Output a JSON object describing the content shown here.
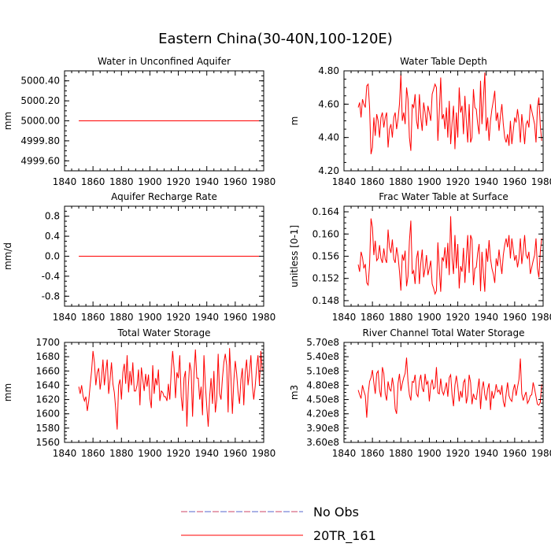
{
  "figure_title": "Eastern China(30-40N,100-120E)",
  "legend": {
    "entries": [
      {
        "label": "No Obs",
        "color": "#cc4466",
        "color2": "#5566cc",
        "style": "dashed"
      },
      {
        "label": "20TR_161",
        "color": "#ff0000",
        "style": "solid"
      }
    ]
  },
  "chart_data": [
    {
      "type": "line",
      "title": "Water in Unconfined Aquifer",
      "xlabel": "",
      "ylabel": "mm",
      "xlim": [
        1840,
        1980
      ],
      "ylim": [
        4999.5,
        5000.5
      ],
      "x_ticks": [
        1840,
        1860,
        1880,
        1900,
        1920,
        1940,
        1960,
        1980
      ],
      "x_tick_labels": [
        "1840",
        "1860",
        "1880",
        "1900",
        "1920",
        "1940",
        "1960",
        "1980"
      ],
      "y_ticks": [
        4999.6,
        4999.8,
        5000.0,
        5000.2,
        5000.4
      ],
      "y_tick_labels": [
        "4999.60",
        "4999.80",
        "5000.00",
        "5000.20",
        "5000.40"
      ],
      "series": [
        {
          "name": "20TR_161",
          "color": "#ff0000",
          "x_start": 1850,
          "x_step": 1,
          "values": [
            5000.0,
            5000.0
          ]
        }
      ],
      "series_constant_x_end": 1979
    },
    {
      "type": "line",
      "title": "Water Table Depth",
      "xlabel": "",
      "ylabel": "m",
      "xlim": [
        1840,
        1980
      ],
      "ylim": [
        4.2,
        4.8
      ],
      "x_ticks": [
        1840,
        1860,
        1880,
        1900,
        1920,
        1940,
        1960,
        1980
      ],
      "x_tick_labels": [
        "1840",
        "1860",
        "1880",
        "1900",
        "1920",
        "1940",
        "1960",
        "1980"
      ],
      "y_ticks": [
        4.2,
        4.4,
        4.6,
        4.8
      ],
      "y_tick_labels": [
        "4.20",
        "4.40",
        "4.60",
        "4.80"
      ],
      "series": [
        {
          "name": "20TR_161",
          "color": "#ff0000",
          "x_start": 1850,
          "x_step": 1,
          "values": [
            4.58,
            4.61,
            4.52,
            4.63,
            4.6,
            4.58,
            4.71,
            4.72,
            4.58,
            4.3,
            4.34,
            4.52,
            4.41,
            4.54,
            4.5,
            4.4,
            4.52,
            4.55,
            4.46,
            4.52,
            4.55,
            4.34,
            4.45,
            4.48,
            4.4,
            4.52,
            4.55,
            4.45,
            4.51,
            4.6,
            4.78,
            4.5,
            4.55,
            4.48,
            4.7,
            4.63,
            4.4,
            4.32,
            4.6,
            4.58,
            4.66,
            4.5,
            4.45,
            4.66,
            4.52,
            4.44,
            4.61,
            4.55,
            4.47,
            4.59,
            4.55,
            4.5,
            4.66,
            4.69,
            4.72,
            4.7,
            4.38,
            4.55,
            4.76,
            4.51,
            4.54,
            4.45,
            4.58,
            4.4,
            4.62,
            4.36,
            4.49,
            4.59,
            4.33,
            4.55,
            4.4,
            4.7,
            4.55,
            4.59,
            4.42,
            4.65,
            4.5,
            4.37,
            4.6,
            4.37,
            4.4,
            4.69,
            4.58,
            4.57,
            4.48,
            4.42,
            4.74,
            4.48,
            4.63,
            4.79,
            4.44,
            4.52,
            4.38,
            4.5,
            4.57,
            4.62,
            4.68,
            4.5,
            4.55,
            4.44,
            4.53,
            4.6,
            4.48,
            4.4,
            4.37,
            4.42,
            4.35,
            4.5,
            4.36,
            4.44,
            4.52,
            4.49,
            4.57,
            4.5,
            4.37,
            4.54,
            4.46,
            4.36,
            4.48,
            4.5,
            4.46,
            4.6,
            4.56,
            4.52,
            4.48,
            4.37,
            4.58,
            4.64,
            4.47,
            4.38
          ]
        }
      ]
    },
    {
      "type": "line",
      "title": "Aquifer Recharge Rate",
      "xlabel": "",
      "ylabel": "mm/d",
      "xlim": [
        1840,
        1980
      ],
      "ylim": [
        -1.0,
        1.0
      ],
      "x_ticks": [
        1840,
        1860,
        1880,
        1900,
        1920,
        1940,
        1960,
        1980
      ],
      "x_tick_labels": [
        "1840",
        "1860",
        "1880",
        "1900",
        "1920",
        "1940",
        "1960",
        "1980"
      ],
      "y_ticks": [
        -0.8,
        -0.4,
        0.0,
        0.4,
        0.8
      ],
      "y_tick_labels": [
        "-0.8",
        "-0.4",
        "0.0",
        "0.4",
        "0.8"
      ],
      "series": [
        {
          "name": "20TR_161",
          "color": "#ff0000",
          "x_start": 1850,
          "x_step": 1,
          "values": [
            0.0,
            0.0
          ]
        }
      ],
      "series_constant_x_end": 1979
    },
    {
      "type": "line",
      "title": "Frac Water Table at Surface",
      "xlabel": "",
      "ylabel": "unitless [0-1]",
      "xlim": [
        1840,
        1980
      ],
      "ylim": [
        0.147,
        0.165
      ],
      "x_ticks": [
        1840,
        1860,
        1880,
        1900,
        1920,
        1940,
        1960,
        1980
      ],
      "x_tick_labels": [
        "1840",
        "1860",
        "1880",
        "1900",
        "1920",
        "1940",
        "1960",
        "1980"
      ],
      "y_ticks": [
        0.148,
        0.152,
        0.156,
        0.16,
        0.164
      ],
      "y_tick_labels": [
        "0.148",
        "0.152",
        "0.156",
        "0.160",
        "0.164"
      ],
      "series": [
        {
          "name": "20TR_161",
          "color": "#ff0000",
          "x_start": 1850,
          "x_step": 1,
          "values": [
            0.1545,
            0.1532,
            0.1568,
            0.1558,
            0.1538,
            0.1546,
            0.1512,
            0.1508,
            0.1545,
            0.1628,
            0.1612,
            0.1562,
            0.1588,
            0.1552,
            0.1556,
            0.158,
            0.1556,
            0.1548,
            0.1574,
            0.1555,
            0.1548,
            0.1608,
            0.1576,
            0.1566,
            0.159,
            0.1555,
            0.1548,
            0.1576,
            0.156,
            0.1533,
            0.1498,
            0.1563,
            0.1552,
            0.157,
            0.1506,
            0.1524,
            0.1587,
            0.1624,
            0.1528,
            0.1534,
            0.151,
            0.1556,
            0.157,
            0.151,
            0.1548,
            0.1572,
            0.1522,
            0.1538,
            0.1562,
            0.1526,
            0.1538,
            0.1552,
            0.151,
            0.1502,
            0.1492,
            0.1498,
            0.1585,
            0.1538,
            0.1496,
            0.1558,
            0.1552,
            0.1576,
            0.1538,
            0.1584,
            0.1526,
            0.1632,
            0.1556,
            0.1528,
            0.1598,
            0.1538,
            0.1582,
            0.1502,
            0.1542,
            0.1532,
            0.1575,
            0.1512,
            0.1556,
            0.1598,
            0.153,
            0.1598,
            0.159,
            0.1508,
            0.1538,
            0.154,
            0.1566,
            0.1582,
            0.1497,
            0.1568,
            0.153,
            0.1496,
            0.1574,
            0.155,
            0.1589,
            0.1556,
            0.1538,
            0.1528,
            0.1512,
            0.1556,
            0.1542,
            0.1572,
            0.1548,
            0.1528,
            0.1562,
            0.158,
            0.1592,
            0.1576,
            0.1598,
            0.1556,
            0.1592,
            0.1572,
            0.1552,
            0.1562,
            0.154,
            0.1556,
            0.1592,
            0.1546,
            0.1568,
            0.1598,
            0.1562,
            0.1556,
            0.1568,
            0.1528,
            0.154,
            0.1552,
            0.1562,
            0.1592,
            0.1538,
            0.1522,
            0.1568,
            0.1592
          ]
        }
      ]
    },
    {
      "type": "line",
      "title": "Total Water Storage",
      "xlabel": "",
      "ylabel": "mm",
      "xlim": [
        1840,
        1980
      ],
      "ylim": [
        1560,
        1700
      ],
      "x_ticks": [
        1840,
        1860,
        1880,
        1900,
        1920,
        1940,
        1960,
        1980
      ],
      "x_tick_labels": [
        "1840",
        "1860",
        "1880",
        "1900",
        "1920",
        "1940",
        "1960",
        "1980"
      ],
      "y_ticks": [
        1560,
        1580,
        1600,
        1620,
        1640,
        1660,
        1680,
        1700
      ],
      "y_tick_labels": [
        "1560",
        "1580",
        "1600",
        "1620",
        "1640",
        "1660",
        "1680",
        "1700"
      ],
      "series": [
        {
          "name": "20TR_161",
          "color": "#ff0000",
          "x_start": 1850,
          "x_step": 1,
          "values": [
            1638,
            1628,
            1640,
            1625,
            1618,
            1624,
            1604,
            1618,
            1640,
            1660,
            1688,
            1672,
            1640,
            1658,
            1664,
            1634,
            1650,
            1676,
            1640,
            1660,
            1676,
            1628,
            1648,
            1672,
            1642,
            1630,
            1606,
            1578,
            1640,
            1648,
            1620,
            1658,
            1670,
            1642,
            1682,
            1630,
            1660,
            1640,
            1672,
            1632,
            1632,
            1640,
            1662,
            1612,
            1665,
            1648,
            1632,
            1656,
            1638,
            1655,
            1622,
            1608,
            1668,
            1628,
            1650,
            1640,
            1662,
            1618,
            1632,
            1630,
            1624,
            1624,
            1618,
            1642,
            1620,
            1660,
            1688,
            1664,
            1622,
            1658,
            1650,
            1682,
            1624,
            1604,
            1650,
            1660,
            1582,
            1638,
            1672,
            1660,
            1596,
            1656,
            1690,
            1650,
            1650,
            1620,
            1638,
            1598,
            1682,
            1640,
            1610,
            1582,
            1624,
            1650,
            1614,
            1660,
            1602,
            1620,
            1684,
            1628,
            1620,
            1650,
            1672,
            1684,
            1668,
            1602,
            1692,
            1650,
            1600,
            1646,
            1674,
            1656,
            1630,
            1614,
            1648,
            1664,
            1612,
            1658,
            1676,
            1640,
            1658,
            1682,
            1640,
            1620,
            1638,
            1664,
            1682,
            1640,
            1688,
            1660
          ]
        }
      ]
    },
    {
      "type": "line",
      "title": "River Channel Total Water Storage",
      "xlabel": "",
      "ylabel": "m3",
      "xlim": [
        1840,
        1980
      ],
      "ylim": [
        360000000.0,
        570000000.0
      ],
      "x_ticks": [
        1840,
        1860,
        1880,
        1900,
        1920,
        1940,
        1960,
        1980
      ],
      "x_tick_labels": [
        "1840",
        "1860",
        "1880",
        "1900",
        "1920",
        "1940",
        "1960",
        "1980"
      ],
      "y_ticks": [
        360000000.0,
        390000000.0,
        420000000.0,
        450000000.0,
        480000000.0,
        510000000.0,
        540000000.0,
        570000000.0
      ],
      "y_tick_labels": [
        "3.60e8",
        "3.90e8",
        "4.20e8",
        "4.50e8",
        "4.80e8",
        "5.10e8",
        "5.40e8",
        "5.70e8"
      ],
      "series": [
        {
          "name": "20TR_161",
          "color": "#ff0000",
          "x_start": 1850,
          "x_step": 1,
          "values": [
            470000000.0,
            460000000.0,
            452000000.0,
            480000000.0,
            468000000.0,
            458000000.0,
            412000000.0,
            462000000.0,
            488000000.0,
            496000000.0,
            512000000.0,
            485000000.0,
            462000000.0,
            505000000.0,
            510000000.0,
            470000000.0,
            455000000.0,
            518000000.0,
            505000000.0,
            462000000.0,
            448000000.0,
            488000000.0,
            472000000.0,
            468000000.0,
            496000000.0,
            476000000.0,
            430000000.0,
            420000000.0,
            484000000.0,
            504000000.0,
            468000000.0,
            484000000.0,
            496000000.0,
            505000000.0,
            538000000.0,
            488000000.0,
            460000000.0,
            448000000.0,
            488000000.0,
            486000000.0,
            502000000.0,
            462000000.0,
            456000000.0,
            488000000.0,
            502000000.0,
            474000000.0,
            466000000.0,
            504000000.0,
            482000000.0,
            488000000.0,
            446000000.0,
            480000000.0,
            492000000.0,
            472000000.0,
            476000000.0,
            518000000.0,
            464000000.0,
            462000000.0,
            494000000.0,
            468000000.0,
            460000000.0,
            472000000.0,
            486000000.0,
            456000000.0,
            496000000.0,
            502000000.0,
            460000000.0,
            436000000.0,
            480000000.0,
            500000000.0,
            478000000.0,
            446000000.0,
            468000000.0,
            454000000.0,
            486000000.0,
            492000000.0,
            442000000.0,
            458000000.0,
            502000000.0,
            486000000.0,
            440000000.0,
            462000000.0,
            452000000.0,
            450000000.0,
            472000000.0,
            494000000.0,
            430000000.0,
            472000000.0,
            488000000.0,
            460000000.0,
            448000000.0,
            472000000.0,
            484000000.0,
            428000000.0,
            468000000.0,
            452000000.0,
            462000000.0,
            482000000.0,
            466000000.0,
            470000000.0,
            460000000.0,
            480000000.0,
            446000000.0,
            434000000.0,
            462000000.0,
            486000000.0,
            458000000.0,
            450000000.0,
            446000000.0,
            470000000.0,
            482000000.0,
            458000000.0,
            476000000.0,
            492000000.0,
            536000000.0,
            462000000.0,
            448000000.0,
            458000000.0,
            466000000.0,
            442000000.0,
            448000000.0,
            458000000.0,
            460000000.0,
            486000000.0,
            472000000.0,
            456000000.0,
            440000000.0,
            438000000.0,
            444000000.0,
            482000000.0
          ]
        }
      ]
    }
  ]
}
